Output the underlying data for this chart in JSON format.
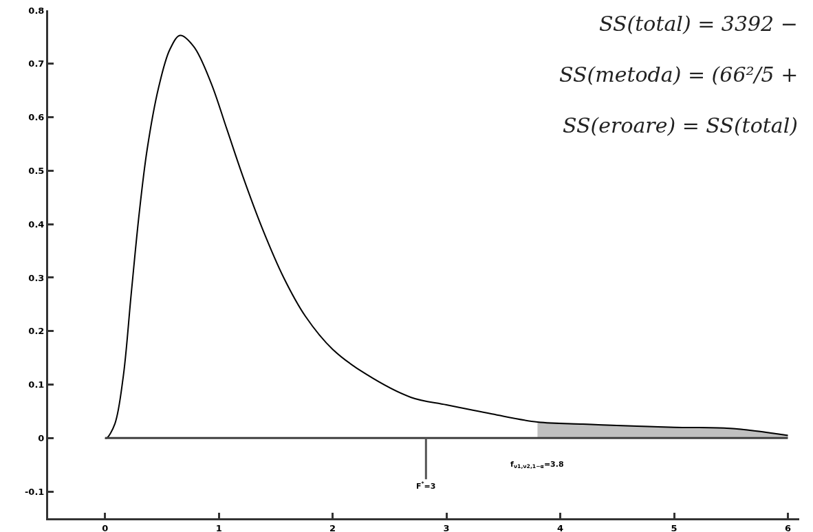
{
  "chart_data": {
    "type": "line",
    "x": [
      0,
      0.015,
      0.087,
      0.16,
      0.23,
      0.3,
      0.37,
      0.47,
      0.57,
      0.66,
      0.78,
      0.93,
      1.07,
      1.21,
      1.38,
      1.57,
      1.76,
      2.0,
      2.29,
      2.69,
      3.0,
      3.4,
      3.8,
      4.2,
      4.58,
      5.0,
      5.49,
      6.0
    ],
    "series": [
      {
        "color": "#000000",
        "values": [
          0,
          0,
          0.027,
          0.115,
          0.27,
          0.42,
          0.54,
          0.655,
          0.727,
          0.753,
          0.732,
          0.665,
          0.578,
          0.49,
          0.393,
          0.3,
          0.228,
          0.166,
          0.12,
          0.076,
          0.062,
          0.045,
          0.03,
          0.026,
          0.023,
          0.02,
          0.018,
          0.005
        ]
      },
      {
        "type": "area",
        "color": "#c0c0c0",
        "x": [
          3.8,
          4.2,
          4.58,
          5.0,
          5.49,
          6.0
        ],
        "values": [
          0.03,
          0.026,
          0.023,
          0.02,
          0.018,
          0.005
        ]
      }
    ],
    "xlim": [
      -0.5,
      6.1
    ],
    "xticks": [
      0,
      1,
      2,
      3,
      4,
      5,
      6
    ],
    "ylim": [
      -0.15,
      0.8
    ],
    "yticks": [
      -0.1,
      0,
      0.1,
      0.2,
      0.3,
      0.4,
      0.5,
      0.6,
      0.7,
      0.8
    ],
    "ref_lines": [
      {
        "axis": "y",
        "value": 0,
        "color": "#404040"
      }
    ],
    "annotations": [
      {
        "text": "F$^{*}$=3",
        "x": 2.82,
        "y": 0
      },
      {
        "text": "f$_{ν1,ν2,1−α}$=3.8",
        "x": 3.8,
        "y": 0
      },
      "SS(total) = 3392 −",
      "SS(metoda) = (66²/5 +",
      "SS(eroare) = SS(total)"
    ],
    "grid": false,
    "marker": "none",
    "line_style": "solid"
  }
}
